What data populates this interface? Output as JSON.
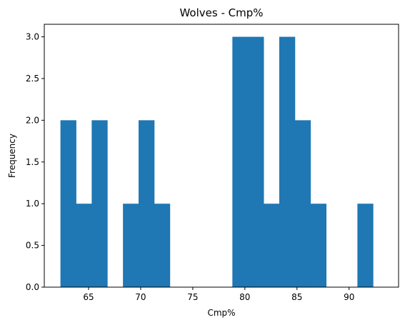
{
  "chart_data": {
    "type": "bar",
    "title": "Wolves - Cmp%",
    "xlabel": "Cmp%",
    "ylabel": "Frequency",
    "bin_edges": [
      62.3,
      63.8,
      65.3,
      66.8,
      68.3,
      69.8,
      71.3,
      72.8,
      74.3,
      75.8,
      77.3,
      78.8,
      80.3,
      81.8,
      83.3,
      84.8,
      86.3,
      87.8,
      89.3,
      90.8,
      92.3,
      93.8
    ],
    "values": [
      2,
      1,
      2,
      0,
      1,
      2,
      1,
      0,
      0,
      0,
      0,
      3,
      3,
      1,
      3,
      2,
      1,
      0,
      0,
      1,
      0
    ],
    "xticks": [
      65,
      70,
      75,
      80,
      85,
      90
    ],
    "yticks": [
      0.0,
      0.5,
      1.0,
      1.5,
      2.0,
      2.5,
      3.0
    ],
    "xlim": [
      60.75,
      94.75
    ],
    "ylim": [
      0,
      3.15
    ],
    "grid": false,
    "bar_color": "#1f77b4"
  }
}
